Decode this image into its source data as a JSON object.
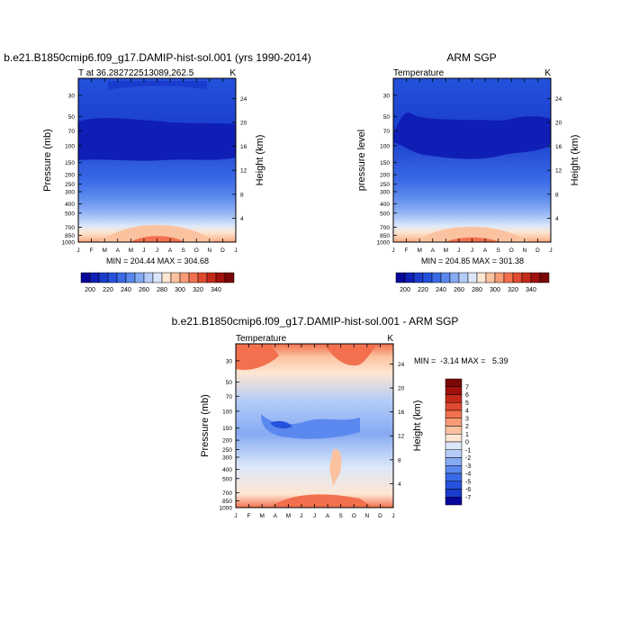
{
  "chart_data": [
    {
      "type": "heatmap",
      "title": "b.e21.B1850cmip6.f09_g17.DAMIP-hist-sol.001 (yrs 1990-2014)",
      "subtitle_left": "T at 36.282722513089,262.5",
      "subtitle_right": "K",
      "xlabel": "",
      "ylabel": "Pressure (mb)",
      "ylabel_right": "Height (km)",
      "x_ticks": [
        "J",
        "F",
        "M",
        "A",
        "M",
        "J",
        "J",
        "A",
        "S",
        "O",
        "N",
        "D",
        "J"
      ],
      "y_ticks": [
        "30",
        "50",
        "70",
        "100",
        "150",
        "200",
        "250",
        "300",
        "400",
        "500",
        "700",
        "850",
        "1000"
      ],
      "y_values": [
        30,
        50,
        70,
        100,
        150,
        200,
        250,
        300,
        400,
        500,
        700,
        850,
        1000
      ],
      "right_ticks": [
        "24",
        "20",
        "16",
        "12",
        "8",
        "4"
      ],
      "ylim": [
        1000,
        20
      ],
      "log_scale_y": true,
      "stats": "MIN = 204.44 MAX = 304.68",
      "colorbar": {
        "labels": [
          "200",
          "220",
          "240",
          "260",
          "280",
          "300",
          "320",
          "340"
        ],
        "colors": [
          "#08069a",
          "#0f1eb4",
          "#1a3ccc",
          "#2452dc",
          "#3a6ae6",
          "#5a88ee",
          "#86aaf2",
          "#b4ccf8",
          "#dce8fa",
          "#fde6d2",
          "#fbc2a0",
          "#f89c78",
          "#f2704e",
          "#e04a30",
          "#c42a1a",
          "#a0100c",
          "#7a0606"
        ]
      }
    },
    {
      "type": "heatmap",
      "title": "ARM SGP",
      "subtitle_left": "Temperature",
      "subtitle_right": "K",
      "xlabel": "",
      "ylabel": "pressure level",
      "ylabel_right": "Height (km)",
      "x_ticks": [
        "J",
        "F",
        "M",
        "A",
        "M",
        "J",
        "J",
        "A",
        "S",
        "O",
        "N",
        "D",
        "J"
      ],
      "y_ticks": [
        "30",
        "50",
        "70",
        "100",
        "150",
        "200",
        "250",
        "300",
        "400",
        "500",
        "700",
        "850",
        "1000"
      ],
      "y_values": [
        30,
        50,
        70,
        100,
        150,
        200,
        250,
        300,
        400,
        500,
        700,
        850,
        1000
      ],
      "right_ticks": [
        "24",
        "20",
        "16",
        "12",
        "8",
        "4"
      ],
      "ylim": [
        1000,
        20
      ],
      "log_scale_y": true,
      "stats": "MIN = 204.85 MAX = 301.38",
      "colorbar": {
        "labels": [
          "200",
          "220",
          "240",
          "260",
          "280",
          "300",
          "320",
          "340"
        ],
        "colors": [
          "#08069a",
          "#0f1eb4",
          "#1a3ccc",
          "#2452dc",
          "#3a6ae6",
          "#5a88ee",
          "#86aaf2",
          "#b4ccf8",
          "#dce8fa",
          "#fde6d2",
          "#fbc2a0",
          "#f89c78",
          "#f2704e",
          "#e04a30",
          "#c42a1a",
          "#a0100c",
          "#7a0606"
        ]
      }
    },
    {
      "type": "heatmap",
      "title": "b.e21.B1850cmip6.f09_g17.DAMIP-hist-sol.001 - ARM SGP",
      "subtitle_left": "Temperature",
      "subtitle_right": "K",
      "xlabel": "",
      "ylabel": "Pressure (mb)",
      "ylabel_right": "Height (km)",
      "x_ticks": [
        "J",
        "F",
        "M",
        "A",
        "M",
        "J",
        "J",
        "A",
        "S",
        "O",
        "N",
        "D",
        "J"
      ],
      "y_ticks": [
        "30",
        "50",
        "70",
        "100",
        "150",
        "200",
        "250",
        "300",
        "400",
        "500",
        "700",
        "850",
        "1000"
      ],
      "y_values": [
        30,
        50,
        70,
        100,
        150,
        200,
        250,
        300,
        400,
        500,
        700,
        850,
        1000
      ],
      "right_ticks": [
        "24",
        "20",
        "16",
        "12",
        "8",
        "4"
      ],
      "ylim": [
        1000,
        20
      ],
      "log_scale_y": true,
      "stats": "MIN =  -3.14 MAX =   5.39",
      "colorbar": {
        "labels": [
          "7",
          "6",
          "5",
          "4",
          "3",
          "2",
          "1",
          "0",
          "-1",
          "-2",
          "-3",
          "-4",
          "-5",
          "-6",
          "-7"
        ],
        "colors": [
          "#7a0606",
          "#a0100c",
          "#c42a1a",
          "#e04a30",
          "#f2704e",
          "#f89c78",
          "#fbc2a0",
          "#fde6d2",
          "#dce8fa",
          "#b4ccf8",
          "#86aaf2",
          "#5a88ee",
          "#3a6ae6",
          "#2452dc",
          "#1a3ccc",
          "#08069a"
        ]
      }
    }
  ]
}
